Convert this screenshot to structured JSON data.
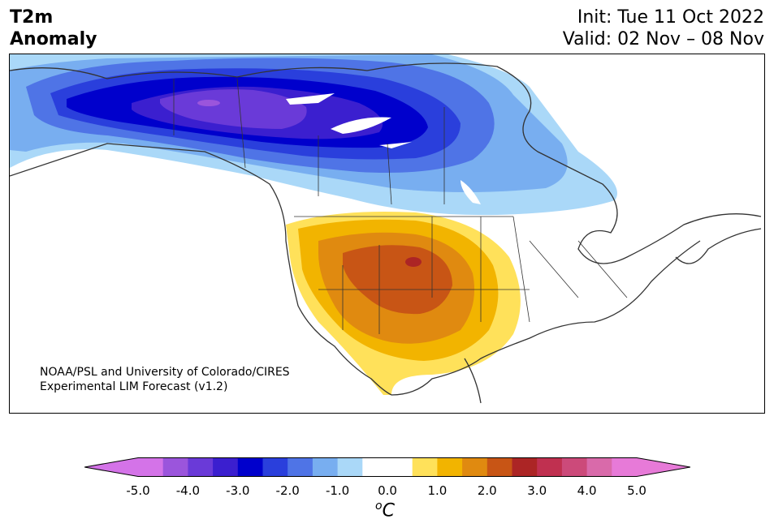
{
  "header": {
    "title_line1": "T2m",
    "title_line2": "Anomaly",
    "init": "Init: Tue 11 Oct 2022",
    "valid": "Valid: 02 Nov – 08 Nov"
  },
  "credit": {
    "line1": "NOAA/PSL and University of Colorado/CIRES",
    "line2": "Experimental LIM Forecast (v1.2)"
  },
  "colorbar": {
    "unit_base": "C",
    "unit_sup": "o",
    "ticks": [
      "-5.0",
      "-4.0",
      "-3.0",
      "-2.0",
      "-1.0",
      "0.0",
      "1.0",
      "2.0",
      "3.0",
      "4.0",
      "5.0"
    ],
    "colors": [
      "#d473e8",
      "#9b55dc",
      "#6a3ad8",
      "#3b1fcf",
      "#0000cc",
      "#2a3fdc",
      "#4f74e6",
      "#78aef0",
      "#aad8f8",
      "#ffffff",
      "#ffffff",
      "#ffe15a",
      "#f2b400",
      "#e08a10",
      "#c85515",
      "#ac2525",
      "#c03050",
      "#cc4a7a",
      "#d96aaa",
      "#e77ad8"
    ],
    "under_color": "#d473e8",
    "over_color": "#e77ad8"
  },
  "colors": {
    "coastline": "#333333",
    "cold_light": "#aad8f8",
    "cold_medium": "#78aef0",
    "cold_strong": "#4f74e6",
    "cold_deep": "#0000cc",
    "cold_core": "#6a3ad8",
    "warm_light": "#ffe15a",
    "warm_medium": "#f2b400",
    "warm_strong": "#e08a10",
    "warm_deep": "#c85515",
    "warm_core": "#ac2525"
  }
}
